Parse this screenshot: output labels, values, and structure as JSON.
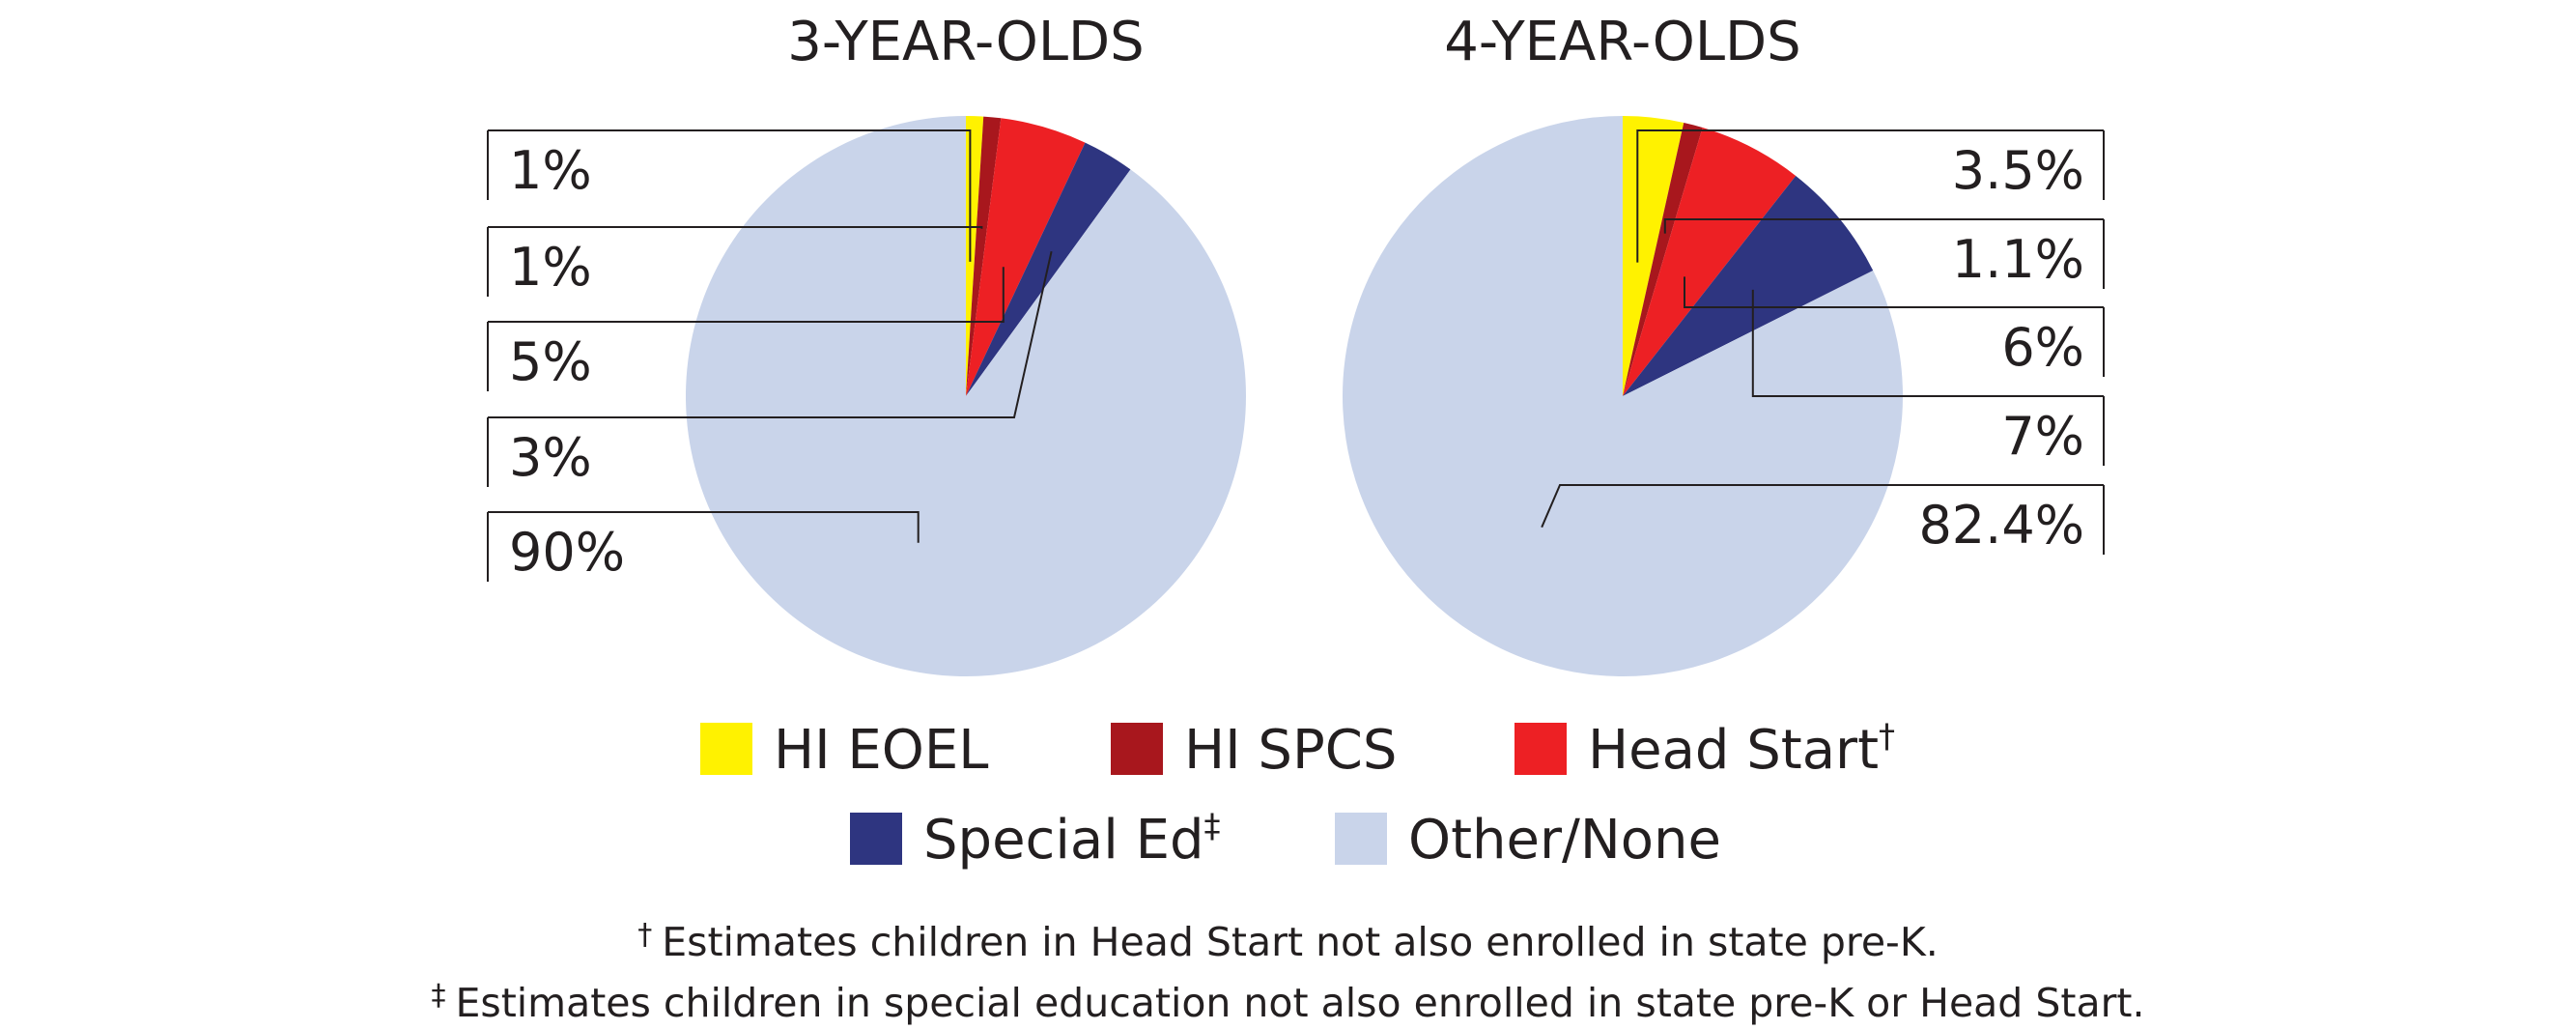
{
  "chart_data": [
    {
      "type": "pie",
      "title": "3-YEAR-OLDS",
      "categories": [
        "HI EOEL",
        "HI SPCS",
        "Head Start",
        "Special Ed",
        "Other/None"
      ],
      "values": [
        1,
        1,
        5,
        3,
        90
      ],
      "labels": [
        "1%",
        "1%",
        "5%",
        "3%",
        "90%"
      ],
      "label_side": "left"
    },
    {
      "type": "pie",
      "title": "4-YEAR-OLDS",
      "categories": [
        "HI EOEL",
        "HI SPCS",
        "Head Start",
        "Special Ed",
        "Other/None"
      ],
      "values": [
        3.5,
        1.1,
        6,
        7,
        82.4
      ],
      "labels": [
        "3.5%",
        "1.1%",
        "6%",
        "7%",
        "82.4%"
      ],
      "label_side": "right"
    }
  ],
  "legend": [
    {
      "label": "HI EOEL",
      "mark": "",
      "color": "#fff200"
    },
    {
      "label": "HI SPCS",
      "mark": "",
      "color": "#a8171d"
    },
    {
      "label": "Head Start",
      "mark": "†",
      "color": "#ed2024"
    },
    {
      "label": "Special Ed",
      "mark": "‡",
      "color": "#2e3580"
    },
    {
      "label": "Other/None",
      "mark": "",
      "color": "#c9d4ea"
    }
  ],
  "footnotes": [
    {
      "mark": "†",
      "text": "Estimates children in Head Start not also enrolled in state pre-K."
    },
    {
      "mark": "‡",
      "text": "Estimates children in special education not also enrolled in state pre-K or Head Start."
    }
  ]
}
